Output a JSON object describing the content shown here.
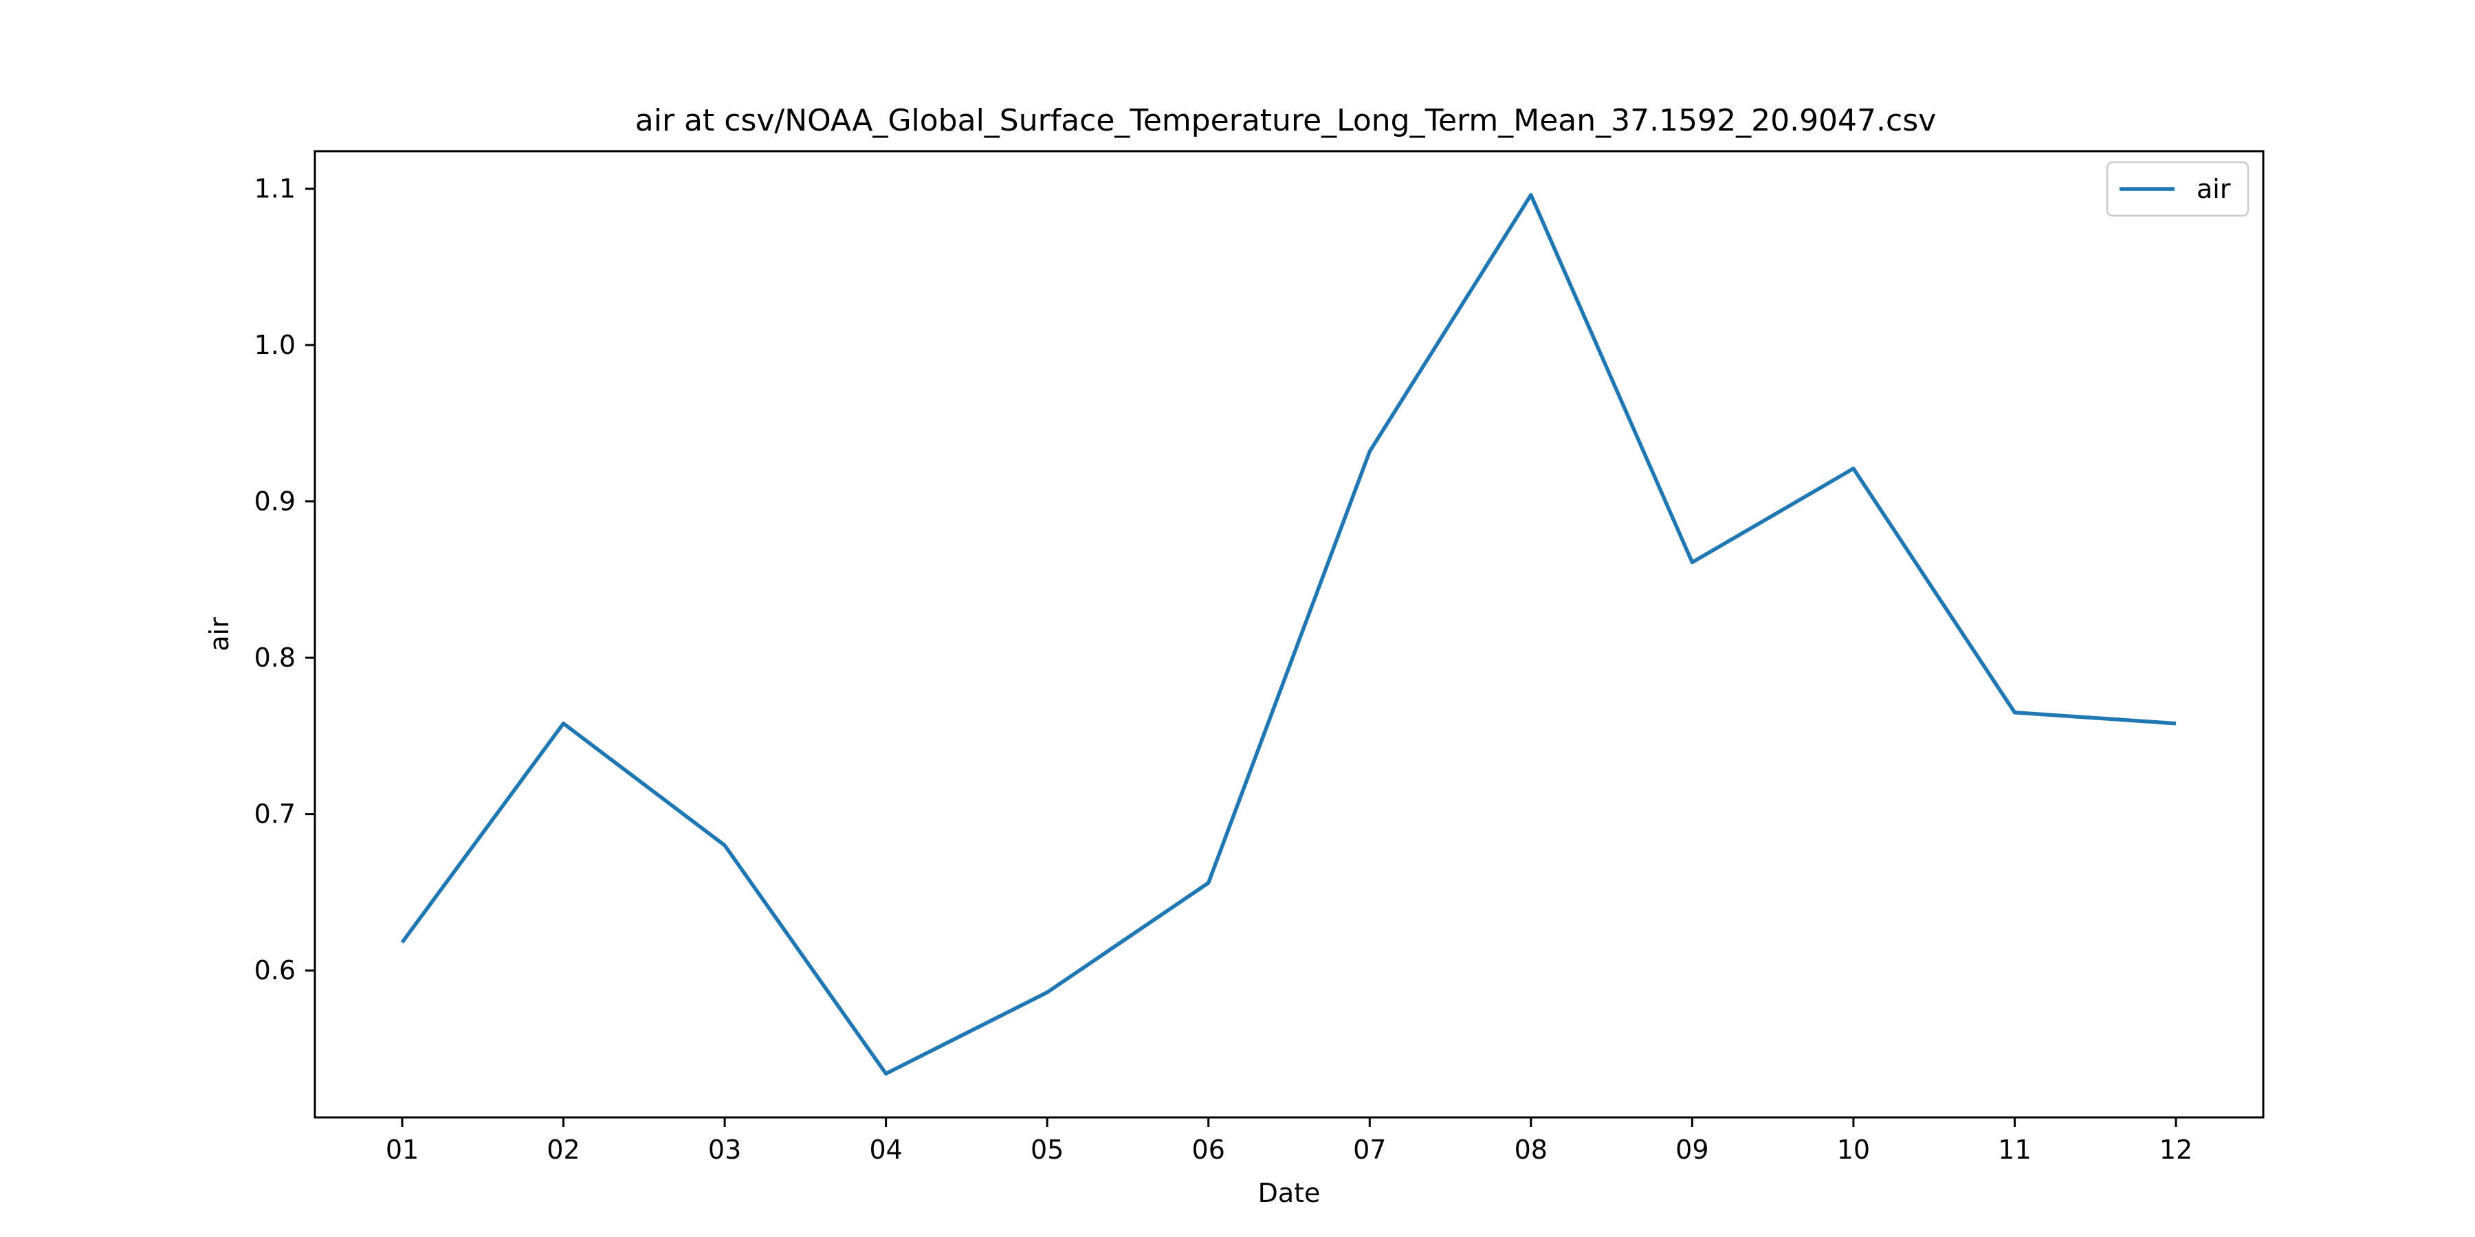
{
  "chart_data": {
    "type": "line",
    "title": "air at csv/NOAA_Global_Surface_Temperature_Long_Term_Mean_37.1592_20.9047.csv",
    "xlabel": "Date",
    "ylabel": "air",
    "categories": [
      "01",
      "02",
      "03",
      "04",
      "05",
      "06",
      "07",
      "08",
      "09",
      "10",
      "11",
      "12"
    ],
    "series": [
      {
        "name": "air",
        "color": "#1f77b4",
        "values": [
          0.618,
          0.758,
          0.68,
          0.534,
          0.586,
          0.656,
          0.932,
          1.096,
          0.861,
          0.921,
          0.765,
          0.758
        ]
      }
    ],
    "yticks": [
      0.6,
      0.7,
      0.8,
      0.9,
      1.0,
      1.1
    ],
    "ylim": [
      0.506,
      1.124
    ],
    "grid": false,
    "legend_position": "top-right"
  }
}
